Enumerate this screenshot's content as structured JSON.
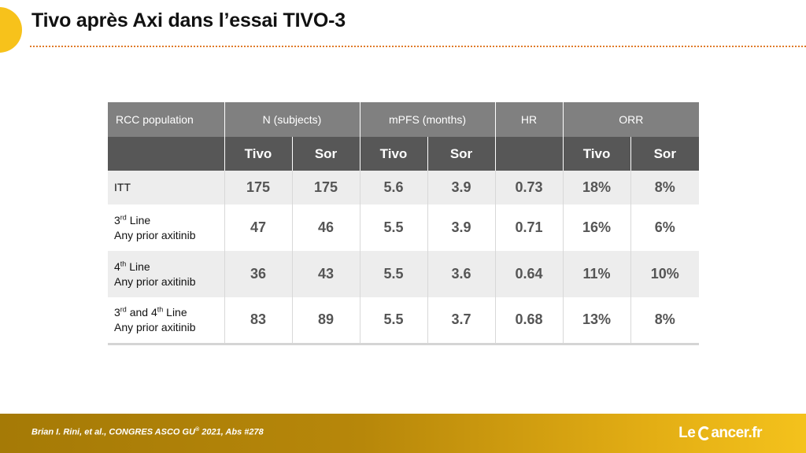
{
  "slide": {
    "title": "Tivo après Axi dans l’essai TIVO-3"
  },
  "table": {
    "header_groups": {
      "population": "RCC population",
      "n": "N (subjects)",
      "mpfs": "mPFS (months)",
      "hr": "HR",
      "orr": "ORR"
    },
    "subheaders": {
      "n_tivo": "Tivo",
      "n_sor": "Sor",
      "mpfs_tivo": "Tivo",
      "mpfs_sor": "Sor",
      "orr_tivo": "Tivo",
      "orr_sor": "Sor"
    },
    "rows": [
      {
        "label_line1": "ITT",
        "label_sup": "",
        "label_line1_rest": "",
        "label_line2": "",
        "n_tivo": "175",
        "n_sor": "175",
        "mpfs_tivo": "5.6",
        "mpfs_sor": "3.9",
        "hr": "0.73",
        "orr_tivo": "18%",
        "orr_sor": "8%"
      },
      {
        "label_line1": "3",
        "label_sup": "rd",
        "label_line1_rest": " Line",
        "label_line2": "Any prior axitinib",
        "n_tivo": "47",
        "n_sor": "46",
        "mpfs_tivo": "5.5",
        "mpfs_sor": "3.9",
        "hr": "0.71",
        "orr_tivo": "16%",
        "orr_sor": "6%"
      },
      {
        "label_line1": "4",
        "label_sup": "th",
        "label_line1_rest": " Line",
        "label_line2": "Any prior axitinib",
        "n_tivo": "36",
        "n_sor": "43",
        "mpfs_tivo": "5.5",
        "mpfs_sor": "3.6",
        "hr": "0.64",
        "orr_tivo": "11%",
        "orr_sor": "10%"
      },
      {
        "label_line1": "3",
        "label_sup": "rd",
        "label_line1_rest": " and 4",
        "label_sup2": "th",
        "label_line1_end": " Line",
        "label_line2": "Any prior axitinib",
        "n_tivo": "83",
        "n_sor": "89",
        "mpfs_tivo": "5.5",
        "mpfs_sor": "3.7",
        "hr": "0.68",
        "orr_tivo": "13%",
        "orr_sor": "8%"
      }
    ]
  },
  "footer": {
    "citation_main": "Brian I. Rini, et al., CONGRES ASCO GU",
    "citation_sup": "®",
    "citation_rest": " 2021, Abs #278",
    "logo_left": "Le",
    "logo_right": "ancer.fr"
  },
  "colors": {
    "accent_yellow": "#f7c21b",
    "header_gray": "#808080",
    "subheader_dark": "#575757",
    "footer_gold": "#b7870a"
  }
}
